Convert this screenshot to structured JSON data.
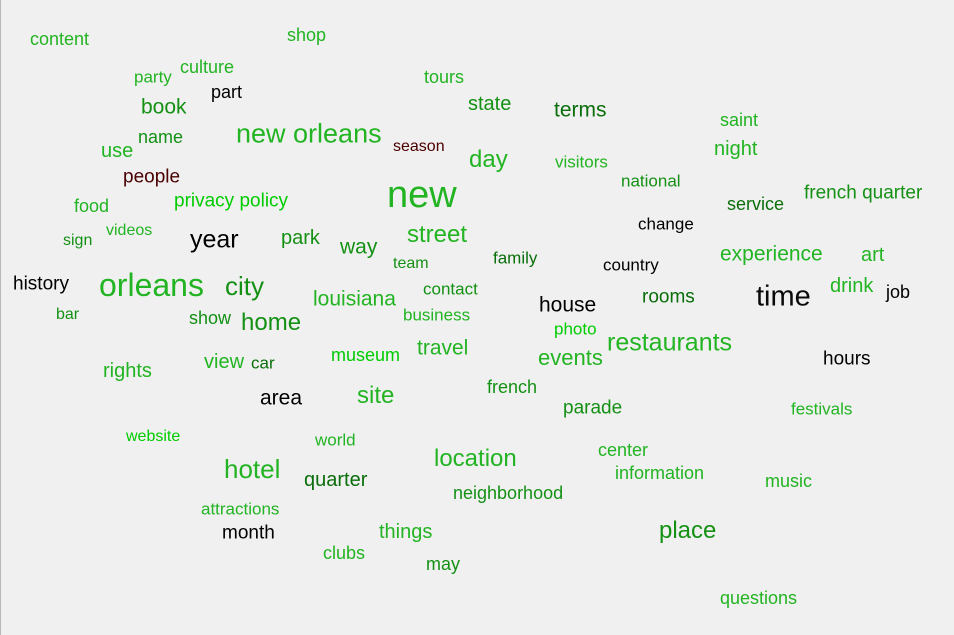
{
  "colors": {
    "background": "#f0f0f0",
    "palette": [
      "#00cc00",
      "#22b422",
      "#149114",
      "#0a6e0a",
      "#000000",
      "#4a0000"
    ]
  },
  "words": [
    {
      "text": "content",
      "color": "#22b422"
    },
    {
      "text": "shop",
      "color": "#22b422"
    },
    {
      "text": "party",
      "color": "#22b422"
    },
    {
      "text": "culture",
      "color": "#22b422"
    },
    {
      "text": "tours",
      "color": "#22b422"
    },
    {
      "text": "book",
      "color": "#149114"
    },
    {
      "text": "part",
      "color": "#000000"
    },
    {
      "text": "state",
      "color": "#149114"
    },
    {
      "text": "terms",
      "color": "#0a6e0a"
    },
    {
      "text": "saint",
      "color": "#22b422"
    },
    {
      "text": "name",
      "color": "#149114"
    },
    {
      "text": "new orleans",
      "color": "#22b422"
    },
    {
      "text": "season",
      "color": "#4a0000"
    },
    {
      "text": "use",
      "color": "#22b422"
    },
    {
      "text": "day",
      "color": "#22b422"
    },
    {
      "text": "visitors",
      "color": "#22b422"
    },
    {
      "text": "night",
      "color": "#22b422"
    },
    {
      "text": "people",
      "color": "#4a0000"
    },
    {
      "text": "national",
      "color": "#149114"
    },
    {
      "text": "new",
      "color": "#22b422"
    },
    {
      "text": "french quarter",
      "color": "#149114"
    },
    {
      "text": "food",
      "color": "#22b422"
    },
    {
      "text": "privacy policy",
      "color": "#00cc00"
    },
    {
      "text": "service",
      "color": "#0a6e0a"
    },
    {
      "text": "videos",
      "color": "#22b422"
    },
    {
      "text": "change",
      "color": "#000000"
    },
    {
      "text": "sign",
      "color": "#149114"
    },
    {
      "text": "year",
      "color": "#000000"
    },
    {
      "text": "park",
      "color": "#149114"
    },
    {
      "text": "street",
      "color": "#22b422"
    },
    {
      "text": "way",
      "color": "#149114"
    },
    {
      "text": "experience",
      "color": "#22b422"
    },
    {
      "text": "art",
      "color": "#22b422"
    },
    {
      "text": "family",
      "color": "#0a6e0a"
    },
    {
      "text": "team",
      "color": "#149114"
    },
    {
      "text": "country",
      "color": "#000000"
    },
    {
      "text": "history",
      "color": "#000000"
    },
    {
      "text": "orleans",
      "color": "#22b422"
    },
    {
      "text": "city",
      "color": "#149114"
    },
    {
      "text": "contact",
      "color": "#149114"
    },
    {
      "text": "drink",
      "color": "#22b422"
    },
    {
      "text": "time",
      "color": "#0a0a0a"
    },
    {
      "text": "job",
      "color": "#000000"
    },
    {
      "text": "louisiana",
      "color": "#22b422"
    },
    {
      "text": "rooms",
      "color": "#0a6e0a"
    },
    {
      "text": "house",
      "color": "#000000"
    },
    {
      "text": "bar",
      "color": "#149114"
    },
    {
      "text": "show",
      "color": "#149114"
    },
    {
      "text": "business",
      "color": "#22b422"
    },
    {
      "text": "home",
      "color": "#149114"
    },
    {
      "text": "photo",
      "color": "#00cc00"
    },
    {
      "text": "restaurants",
      "color": "#22b422"
    },
    {
      "text": "travel",
      "color": "#22b422"
    },
    {
      "text": "events",
      "color": "#22b422"
    },
    {
      "text": "museum",
      "color": "#00cc00"
    },
    {
      "text": "view",
      "color": "#22b422"
    },
    {
      "text": "car",
      "color": "#0a6e0a"
    },
    {
      "text": "hours",
      "color": "#000000"
    },
    {
      "text": "rights",
      "color": "#22b422"
    },
    {
      "text": "french",
      "color": "#149114"
    },
    {
      "text": "area",
      "color": "#000000"
    },
    {
      "text": "site",
      "color": "#22b422"
    },
    {
      "text": "parade",
      "color": "#149114"
    },
    {
      "text": "festivals",
      "color": "#22b422"
    },
    {
      "text": "website",
      "color": "#00cc00"
    },
    {
      "text": "world",
      "color": "#22b422"
    },
    {
      "text": "center",
      "color": "#22b422"
    },
    {
      "text": "location",
      "color": "#22b422"
    },
    {
      "text": "hotel",
      "color": "#22b422"
    },
    {
      "text": "information",
      "color": "#22b422"
    },
    {
      "text": "quarter",
      "color": "#0a6e0a"
    },
    {
      "text": "music",
      "color": "#22b422"
    },
    {
      "text": "neighborhood",
      "color": "#149114"
    },
    {
      "text": "attractions",
      "color": "#22b422"
    },
    {
      "text": "place",
      "color": "#149114"
    },
    {
      "text": "month",
      "color": "#000000"
    },
    {
      "text": "things",
      "color": "#22b422"
    },
    {
      "text": "clubs",
      "color": "#22b422"
    },
    {
      "text": "may",
      "color": "#149114"
    },
    {
      "text": "questions",
      "color": "#22b422"
    }
  ]
}
